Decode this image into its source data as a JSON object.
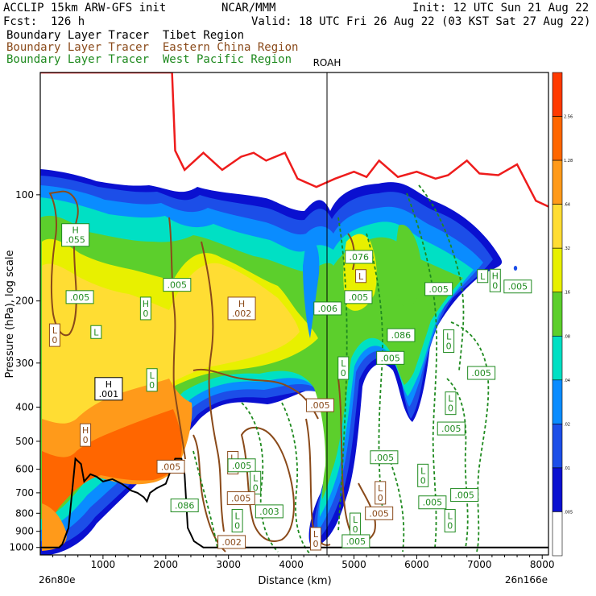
{
  "header": {
    "line1_left": "ACCLIP 15km ARW-GFS init",
    "line1_mid": "NCAR/MMM",
    "line1_right": "Init: 12 UTC Sun 21 Aug 22",
    "line2_left": "Fcst:  126 h",
    "line2_right": "Valid: 18 UTC Fri 26 Aug 22 (03 KST Sat 27 Aug 22)",
    "legend1": "Boundary Layer Tracer  Tibet Region",
    "legend2": "Boundary Layer Tracer  Eastern China Region",
    "legend3": "Boundary Layer Tracer  West Pacific Region"
  },
  "colors": {
    "tibet": "#000000",
    "eastern_china": "#8a4a1a",
    "west_pacific": "#1f8a1f",
    "tropopause": "#ee1c1c",
    "terrain": "#000000"
  },
  "chart_data": {
    "type": "cross-section",
    "xlabel": "Distance (km)",
    "ylabel": "Pressure (hPa), log scale",
    "x_start_label": "26n80e",
    "x_end_label": "26n166e",
    "marker_label": "ROAH",
    "marker_x": 4570,
    "xlim": [
      0,
      8100
    ],
    "ylim": [
      1050,
      45
    ],
    "y_scale": "log",
    "x_ticks": [
      1000,
      2000,
      3000,
      4000,
      5000,
      6000,
      7000,
      8000
    ],
    "y_ticks": [
      100,
      200,
      300,
      400,
      500,
      600,
      700,
      800,
      900,
      1000
    ],
    "colorbar": {
      "levels": [
        "",
        "2.56",
        "1.28",
        ".64",
        ".32",
        ".16",
        ".08",
        ".04",
        ".02",
        ".01",
        ".005"
      ],
      "colors": [
        "#ff3a00",
        "#ff6600",
        "#ff9a1a",
        "#ffdd33",
        "#e8f000",
        "#5ccf2c",
        "#00e0c4",
        "#0a8cff",
        "#1c4ee8",
        "#0a10d0",
        "#ffffff"
      ]
    },
    "tropopause_line": [
      [
        0,
        45
      ],
      [
        2100,
        45
      ],
      [
        2150,
        75
      ],
      [
        2300,
        85
      ],
      [
        2600,
        76
      ],
      [
        2900,
        85
      ],
      [
        3200,
        78
      ],
      [
        3400,
        76
      ],
      [
        3600,
        80
      ],
      [
        3900,
        76
      ],
      [
        4100,
        90
      ],
      [
        4400,
        95
      ],
      [
        4700,
        90
      ],
      [
        5000,
        86
      ],
      [
        5200,
        89
      ],
      [
        5400,
        80
      ],
      [
        5700,
        89
      ],
      [
        6000,
        86
      ],
      [
        6300,
        90
      ],
      [
        6500,
        88
      ],
      [
        6800,
        80
      ],
      [
        7000,
        87
      ],
      [
        7300,
        88
      ],
      [
        7600,
        82
      ],
      [
        7900,
        104
      ],
      [
        8100,
        108
      ]
    ],
    "terrain_line": [
      [
        0,
        1000
      ],
      [
        300,
        1000
      ],
      [
        350,
        980
      ],
      [
        450,
        880
      ],
      [
        560,
        560
      ],
      [
        650,
        580
      ],
      [
        700,
        650
      ],
      [
        800,
        620
      ],
      [
        900,
        630
      ],
      [
        1000,
        650
      ],
      [
        1150,
        640
      ],
      [
        1300,
        660
      ],
      [
        1450,
        690
      ],
      [
        1550,
        700
      ],
      [
        1650,
        720
      ],
      [
        1700,
        740
      ],
      [
        1750,
        700
      ],
      [
        1850,
        680
      ],
      [
        2000,
        660
      ],
      [
        2150,
        560
      ],
      [
        2250,
        560
      ],
      [
        2300,
        620
      ],
      [
        2350,
        880
      ],
      [
        2450,
        960
      ],
      [
        2600,
        1000
      ],
      [
        8100,
        1000
      ]
    ],
    "labels": [
      {
        "text": "H",
        "sub": ".055",
        "x": 560,
        "p": 130,
        "color": "west_pacific"
      },
      {
        "text": "H",
        "sub": "0",
        "x": 1680,
        "p": 210,
        "color": "west_pacific"
      },
      {
        "text": ".005",
        "sub": "",
        "x": 630,
        "p": 195,
        "color": "west_pacific"
      },
      {
        "text": "L",
        "sub": "0",
        "x": 230,
        "p": 250,
        "color": "eastern_china"
      },
      {
        "text": "L",
        "sub": "",
        "x": 890,
        "p": 245,
        "color": "west_pacific"
      },
      {
        "text": ".005",
        "sub": "",
        "x": 2180,
        "p": 180,
        "color": "west_pacific"
      },
      {
        "text": "H",
        "sub": ".002",
        "x": 3210,
        "p": 210,
        "color": "eastern_china"
      },
      {
        "text": "L",
        "sub": "0",
        "x": 1780,
        "p": 335,
        "color": "west_pacific"
      },
      {
        "text": "H",
        "sub": ".001",
        "x": 1090,
        "p": 355,
        "color": "black"
      },
      {
        "text": "H",
        "sub": "0",
        "x": 720,
        "p": 480,
        "color": "eastern_china"
      },
      {
        "text": ".005",
        "sub": "",
        "x": 2080,
        "p": 590,
        "color": "eastern_china"
      },
      {
        "text": ".086",
        "sub": "",
        "x": 2300,
        "p": 760,
        "color": "west_pacific"
      },
      {
        "text": "L",
        "sub": "0",
        "x": 3070,
        "p": 575,
        "color": "eastern_china"
      },
      {
        "text": ".005",
        "sub": "",
        "x": 3210,
        "p": 585,
        "color": "west_pacific"
      },
      {
        "text": "L",
        "sub": "0",
        "x": 3430,
        "p": 655,
        "color": "west_pacific"
      },
      {
        "text": ".005",
        "sub": "",
        "x": 3200,
        "p": 725,
        "color": "eastern_china"
      },
      {
        "text": ".003",
        "sub": "",
        "x": 3650,
        "p": 790,
        "color": "west_pacific"
      },
      {
        "text": "L",
        "sub": "0",
        "x": 3140,
        "p": 840,
        "color": "west_pacific"
      },
      {
        "text": ".002",
        "sub": "",
        "x": 3050,
        "p": 965,
        "color": "eastern_china"
      },
      {
        "text": ".005",
        "sub": "",
        "x": 4460,
        "p": 395,
        "color": "eastern_china"
      },
      {
        "text": "L",
        "sub": "0",
        "x": 4830,
        "p": 310,
        "color": "west_pacific"
      },
      {
        "text": ".006",
        "sub": "",
        "x": 4580,
        "p": 210,
        "color": "west_pacific"
      },
      {
        "text": ".076",
        "sub": "",
        "x": 5080,
        "p": 150,
        "color": "west_pacific"
      },
      {
        "text": ".005",
        "sub": "",
        "x": 5070,
        "p": 195,
        "color": "west_pacific"
      },
      {
        "text": "L",
        "sub": "",
        "x": 5110,
        "p": 170,
        "color": "eastern_china"
      },
      {
        "text": ".086",
        "sub": "",
        "x": 5750,
        "p": 250,
        "color": "west_pacific"
      },
      {
        "text": ".005",
        "sub": "",
        "x": 5580,
        "p": 290,
        "color": "west_pacific"
      },
      {
        "text": "L",
        "sub": "0",
        "x": 6510,
        "p": 260,
        "color": "west_pacific"
      },
      {
        "text": ".005",
        "sub": "",
        "x": 6350,
        "p": 185,
        "color": "west_pacific"
      },
      {
        "text": "L",
        "sub": "",
        "x": 7050,
        "p": 170,
        "color": "west_pacific"
      },
      {
        "text": "H",
        "sub": "0",
        "x": 7250,
        "p": 175,
        "color": "west_pacific"
      },
      {
        "text": ".005",
        "sub": "",
        "x": 7610,
        "p": 182,
        "color": "west_pacific"
      },
      {
        "text": ".005",
        "sub": "",
        "x": 7030,
        "p": 320,
        "color": "west_pacific"
      },
      {
        "text": "L",
        "sub": "0",
        "x": 6540,
        "p": 390,
        "color": "west_pacific"
      },
      {
        "text": ".005",
        "sub": "",
        "x": 6550,
        "p": 460,
        "color": "west_pacific"
      },
      {
        "text": ".005",
        "sub": "",
        "x": 5480,
        "p": 555,
        "color": "west_pacific"
      },
      {
        "text": "L",
        "sub": "0",
        "x": 6100,
        "p": 625,
        "color": "west_pacific"
      },
      {
        "text": ".005",
        "sub": "",
        "x": 6250,
        "p": 745,
        "color": "west_pacific"
      },
      {
        "text": "L",
        "sub": "0",
        "x": 6530,
        "p": 840,
        "color": "west_pacific"
      },
      {
        "text": ".005",
        "sub": "",
        "x": 6760,
        "p": 710,
        "color": "west_pacific"
      },
      {
        "text": "L",
        "sub": "0",
        "x": 5420,
        "p": 700,
        "color": "eastern_china"
      },
      {
        "text": ".005",
        "sub": "",
        "x": 5400,
        "p": 800,
        "color": "eastern_china"
      },
      {
        "text": "L",
        "sub": "0",
        "x": 5020,
        "p": 860,
        "color": "west_pacific"
      },
      {
        "text": ".005",
        "sub": "",
        "x": 5030,
        "p": 960,
        "color": "west_pacific"
      },
      {
        "text": "L",
        "sub": "0",
        "x": 4390,
        "p": 945,
        "color": "eastern_china"
      }
    ]
  }
}
